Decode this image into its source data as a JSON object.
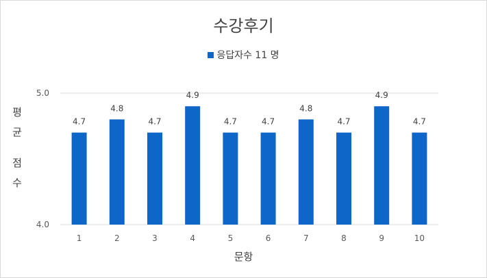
{
  "chart_data": {
    "type": "bar",
    "title": "수강후기",
    "legend": "응답자수 11 명",
    "legend_position": "top",
    "xlabel": "문항",
    "ylabel": [
      "평",
      "균",
      "점",
      "수"
    ],
    "categories": [
      "1",
      "2",
      "3",
      "4",
      "5",
      "6",
      "7",
      "8",
      "9",
      "10"
    ],
    "values": [
      4.7,
      4.8,
      4.7,
      4.9,
      4.7,
      4.7,
      4.8,
      4.7,
      4.9,
      4.7
    ],
    "data_labels": [
      "4.7",
      "4.8",
      "4.7",
      "4.9",
      "4.7",
      "4.7",
      "4.8",
      "4.7",
      "4.9",
      "4.7"
    ],
    "ylim": [
      4.0,
      5.0
    ],
    "yticks": [
      "4.0",
      "5.0"
    ],
    "grid": true,
    "bar_color": "#0e66c8"
  }
}
